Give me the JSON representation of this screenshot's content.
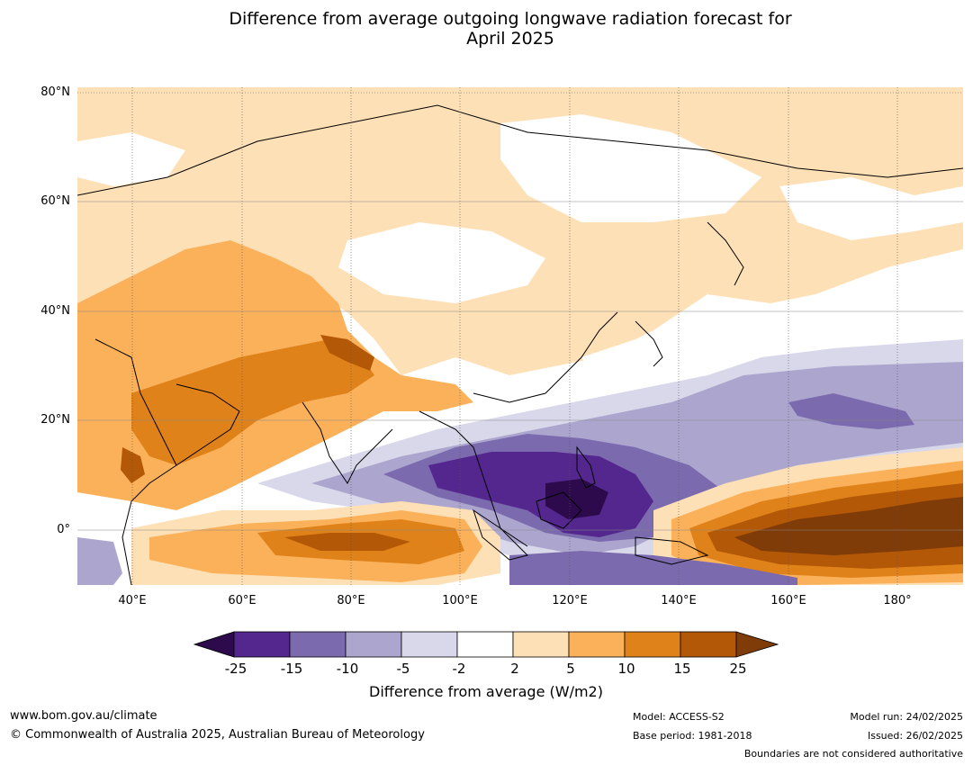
{
  "title": {
    "line1": "Difference from average outgoing longwave radiation forecast for",
    "line2": "April 2025"
  },
  "map": {
    "lat_labels": [
      "80°N",
      "60°N",
      "40°N",
      "20°N",
      "0°"
    ],
    "lon_labels": [
      "40°E",
      "60°E",
      "80°E",
      "100°E",
      "120°E",
      "140°E",
      "160°E",
      "180°"
    ],
    "extent": {
      "lon_min": 30,
      "lon_max": 192,
      "lat_min": -10,
      "lat_max": 81
    }
  },
  "colorbar": {
    "ticks": [
      "-25",
      "-15",
      "-10",
      "-5",
      "-2",
      "2",
      "5",
      "10",
      "15",
      "25"
    ],
    "colors": [
      "#2d0a4b",
      "#54278f",
      "#7b6aad",
      "#aca6cf",
      "#d9d8ea",
      "#ffffff",
      "#fee0b6",
      "#fbb15a",
      "#e0821a",
      "#b35806",
      "#7f3b08"
    ],
    "label": "Difference from average (W/m2)"
  },
  "footer": {
    "website": "www.bom.gov.au/climate",
    "copyright": "© Commonwealth of Australia 2025, Australian Bureau of Meteorology",
    "model": "Model: ACCESS-S2",
    "base_period": "Base period: 1981-2018",
    "model_run": "Model run: 24/02/2025",
    "issued": "Issued: 26/02/2025",
    "disclaimer": "Boundaries are not considered authoritative"
  }
}
